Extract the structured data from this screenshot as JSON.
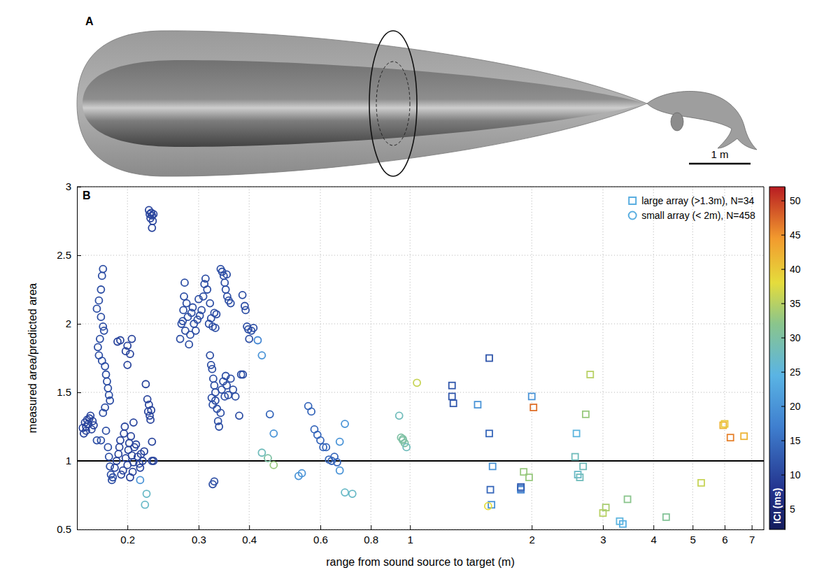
{
  "chart_data": {
    "type": "scatter",
    "panel_labels": [
      "A",
      "B"
    ],
    "scale_bar_label": "1 m",
    "x_label": "range from sound source to target (m)",
    "y_label": "measured area/predicted area",
    "log": "x",
    "grid": true,
    "legend": "top-right",
    "xlim": [
      0.15,
      7.5
    ],
    "xticks": [
      0.2,
      0.3,
      0.4,
      0.6,
      0.8,
      1,
      2,
      3,
      4,
      5,
      6,
      7
    ],
    "ylim": [
      0.5,
      3
    ],
    "yticks": [
      0.5,
      1,
      1.5,
      2,
      2.5,
      3
    ],
    "hline": 1,
    "colorbar": {
      "label": "ICI (ms)",
      "range": [
        2,
        52
      ],
      "ticks": [
        5,
        10,
        15,
        20,
        25,
        30,
        35,
        40,
        45,
        50
      ]
    },
    "series": [
      {
        "name": "large array (>1.3m), N=34",
        "marker": "square",
        "color": "#5aaee0",
        "x": [
          1.47,
          1.27,
          1.27,
          1.28,
          1.57,
          1.57,
          1.58,
          1.6,
          1.59,
          1.88,
          1.88,
          1.88,
          2.0,
          2.02,
          1.91,
          1.97,
          2.58,
          2.56,
          2.6,
          2.63,
          2.68,
          2.72,
          2.79,
          3.0,
          3.05,
          3.3,
          3.36,
          3.45,
          4.3,
          5.25,
          5.95,
          6.0,
          6.2,
          6.7
        ],
        "values": [
          1.41,
          1.55,
          1.47,
          1.42,
          1.75,
          1.2,
          0.79,
          0.96,
          0.68,
          0.8,
          0.79,
          0.81,
          1.47,
          1.39,
          0.92,
          0.88,
          1.2,
          1.03,
          0.9,
          0.88,
          0.96,
          1.34,
          1.63,
          0.62,
          0.66,
          0.56,
          0.54,
          0.72,
          0.59,
          0.84,
          1.26,
          1.27,
          1.17,
          1.18
        ],
        "ici": [
          20,
          12,
          12,
          12,
          12,
          14,
          14,
          20,
          20,
          14,
          18,
          13,
          20,
          47,
          33,
          33,
          25,
          28,
          27,
          28,
          28,
          33,
          35,
          35,
          34,
          25,
          24,
          32,
          31,
          36,
          42,
          40,
          46,
          42
        ]
      },
      {
        "name": "small array (< 2m), N=458",
        "marker": "circle",
        "color": "#5aaee0",
        "x": [
          0.155,
          0.156,
          0.157,
          0.158,
          0.159,
          0.16,
          0.161,
          0.162,
          0.163,
          0.164,
          0.165,
          0.158,
          0.168,
          0.17,
          0.172,
          0.173,
          0.174,
          0.172,
          0.174,
          0.175,
          0.171,
          0.169,
          0.17,
          0.173,
          0.176,
          0.177,
          0.178,
          0.179,
          0.18,
          0.181,
          0.176,
          0.174,
          0.172,
          0.168,
          0.177,
          0.179,
          0.18,
          0.181,
          0.182,
          0.183,
          0.184,
          0.186,
          0.188,
          0.19,
          0.191,
          0.192,
          0.193,
          0.195,
          0.196,
          0.197,
          0.198,
          0.2,
          0.201,
          0.202,
          0.203,
          0.204,
          0.205,
          0.206,
          0.207,
          0.208,
          0.21,
          0.189,
          0.192,
          0.198,
          0.2,
          0.205,
          0.203,
          0.2,
          0.207,
          0.212,
          0.214,
          0.215,
          0.216,
          0.218,
          0.22,
          0.222,
          0.224,
          0.225,
          0.226,
          0.227,
          0.228,
          0.229,
          0.23,
          0.23,
          0.232,
          0.215,
          0.223,
          0.221,
          0.226,
          0.227,
          0.228,
          0.229,
          0.23,
          0.231,
          0.23,
          0.232,
          0.27,
          0.272,
          0.274,
          0.275,
          0.276,
          0.277,
          0.278,
          0.28,
          0.282,
          0.284,
          0.286,
          0.288,
          0.29,
          0.292,
          0.295,
          0.298,
          0.3,
          0.302,
          0.305,
          0.308,
          0.31,
          0.312,
          0.315,
          0.318,
          0.32,
          0.322,
          0.325,
          0.328,
          0.33,
          0.332,
          0.32,
          0.322,
          0.324,
          0.326,
          0.328,
          0.33,
          0.323,
          0.325,
          0.33,
          0.333,
          0.335,
          0.337,
          0.34,
          0.342,
          0.345,
          0.348,
          0.35,
          0.352,
          0.355,
          0.36,
          0.365,
          0.37,
          0.378,
          0.382,
          0.386,
          0.325,
          0.328,
          0.34,
          0.343,
          0.346,
          0.348,
          0.35,
          0.353,
          0.356,
          0.36,
          0.352,
          0.385,
          0.39,
          0.392,
          0.395,
          0.398,
          0.4,
          0.405,
          0.41,
          0.42,
          0.43,
          0.45,
          0.46,
          0.43,
          0.445,
          0.46,
          0.53,
          0.54,
          0.56,
          0.57,
          0.58,
          0.59,
          0.6,
          0.61,
          0.62,
          0.63,
          0.64,
          0.65,
          0.66,
          0.67,
          0.67,
          0.69,
          0.69,
          0.72,
          0.94,
          0.95,
          0.96,
          0.96,
          0.97,
          0.98,
          1.04,
          1.56
        ],
        "values": [
          1.24,
          1.2,
          1.28,
          1.25,
          1.3,
          1.27,
          1.31,
          1.33,
          1.23,
          1.29,
          1.26,
          1.22,
          2.11,
          2.17,
          2.25,
          2.35,
          2.4,
          2.05,
          1.98,
          1.95,
          1.89,
          1.83,
          1.77,
          1.73,
          1.69,
          1.63,
          1.58,
          1.53,
          1.48,
          1.44,
          1.39,
          1.35,
          1.15,
          1.15,
          1.22,
          1.1,
          1.03,
          0.96,
          0.9,
          0.86,
          0.88,
          0.95,
          1.0,
          1.05,
          1.1,
          1.15,
          0.9,
          0.93,
          1.2,
          1.25,
          1.02,
          0.97,
          1.08,
          1.13,
          0.88,
          1.18,
          1.04,
          0.92,
          0.99,
          1.1,
          1.12,
          1.87,
          1.88,
          1.8,
          1.84,
          1.89,
          1.78,
          1.7,
          1.28,
          1.03,
          0.98,
          0.95,
          1.05,
          1.0,
          1.07,
          1.56,
          1.45,
          1.36,
          1.41,
          1.33,
          1.3,
          1.37,
          1.14,
          1.0,
          1.0,
          0.86,
          0.76,
          0.68,
          2.83,
          2.8,
          2.77,
          2.81,
          2.79,
          2.75,
          2.7,
          2.8,
          1.89,
          2.0,
          2.02,
          2.1,
          2.2,
          2.3,
          1.95,
          2.15,
          2.05,
          1.85,
          1.92,
          2.08,
          2.12,
          2.0,
          1.95,
          2.03,
          2.18,
          2.06,
          2.1,
          2.2,
          2.29,
          2.33,
          2.25,
          2.0,
          2.15,
          2.04,
          1.98,
          2.08,
          1.97,
          2.07,
          1.77,
          1.7,
          1.67,
          1.6,
          1.55,
          1.5,
          1.46,
          1.41,
          1.44,
          1.38,
          1.29,
          1.25,
          1.35,
          1.52,
          1.58,
          1.47,
          1.62,
          1.55,
          1.48,
          1.6,
          1.52,
          1.47,
          1.33,
          1.63,
          1.63,
          0.83,
          0.85,
          2.4,
          2.38,
          2.35,
          2.3,
          2.25,
          2.2,
          2.17,
          2.15,
          2.36,
          2.21,
          2.13,
          2.1,
          1.98,
          1.96,
          1.89,
          1.95,
          1.97,
          1.88,
          1.77,
          1.34,
          1.2,
          1.06,
          1.02,
          0.97,
          0.89,
          0.91,
          1.4,
          1.36,
          1.23,
          1.19,
          1.15,
          1.1,
          1.1,
          1.01,
          1.0,
          1.03,
          0.99,
          0.93,
          1.14,
          1.27,
          0.77,
          0.76,
          1.33,
          1.17,
          1.16,
          1.15,
          1.13,
          1.1,
          1.57,
          0.67
        ],
        "ici": [
          10,
          10,
          10,
          10,
          10,
          10,
          10,
          10,
          10,
          10,
          10,
          10,
          11,
          11,
          11,
          11,
          11,
          11,
          11,
          11,
          11,
          11,
          11,
          11,
          11,
          11,
          11,
          11,
          11,
          11,
          11,
          11,
          11,
          11,
          11,
          11,
          11,
          11,
          11,
          11,
          11,
          10,
          10,
          10,
          10,
          10,
          10,
          10,
          10,
          10,
          10,
          10,
          10,
          10,
          10,
          10,
          10,
          10,
          10,
          10,
          10,
          10,
          10,
          10,
          10,
          10,
          10,
          10,
          10,
          10,
          10,
          10,
          10,
          10,
          10,
          10,
          10,
          10,
          10,
          10,
          10,
          10,
          10,
          10,
          10,
          20,
          27,
          27,
          10,
          10,
          10,
          10,
          10,
          10,
          10,
          10,
          11,
          11,
          11,
          11,
          11,
          11,
          11,
          11,
          11,
          11,
          11,
          11,
          11,
          11,
          11,
          11,
          11,
          11,
          11,
          11,
          11,
          11,
          11,
          11,
          11,
          11,
          11,
          11,
          11,
          11,
          11,
          11,
          11,
          11,
          11,
          11,
          11,
          11,
          11,
          11,
          11,
          11,
          11,
          11,
          11,
          11,
          11,
          11,
          11,
          11,
          11,
          11,
          11,
          11,
          11,
          11,
          11,
          11,
          11,
          11,
          11,
          11,
          11,
          11,
          11,
          11,
          11,
          11,
          11,
          11,
          11,
          11,
          11,
          11,
          18,
          20,
          14,
          20,
          28,
          30,
          33,
          20,
          20,
          14,
          14,
          14,
          14,
          14,
          14,
          14,
          14,
          14,
          14,
          14,
          20,
          20,
          20,
          27,
          27,
          28,
          30,
          30,
          30,
          30,
          28,
          36,
          38
        ]
      }
    ]
  }
}
